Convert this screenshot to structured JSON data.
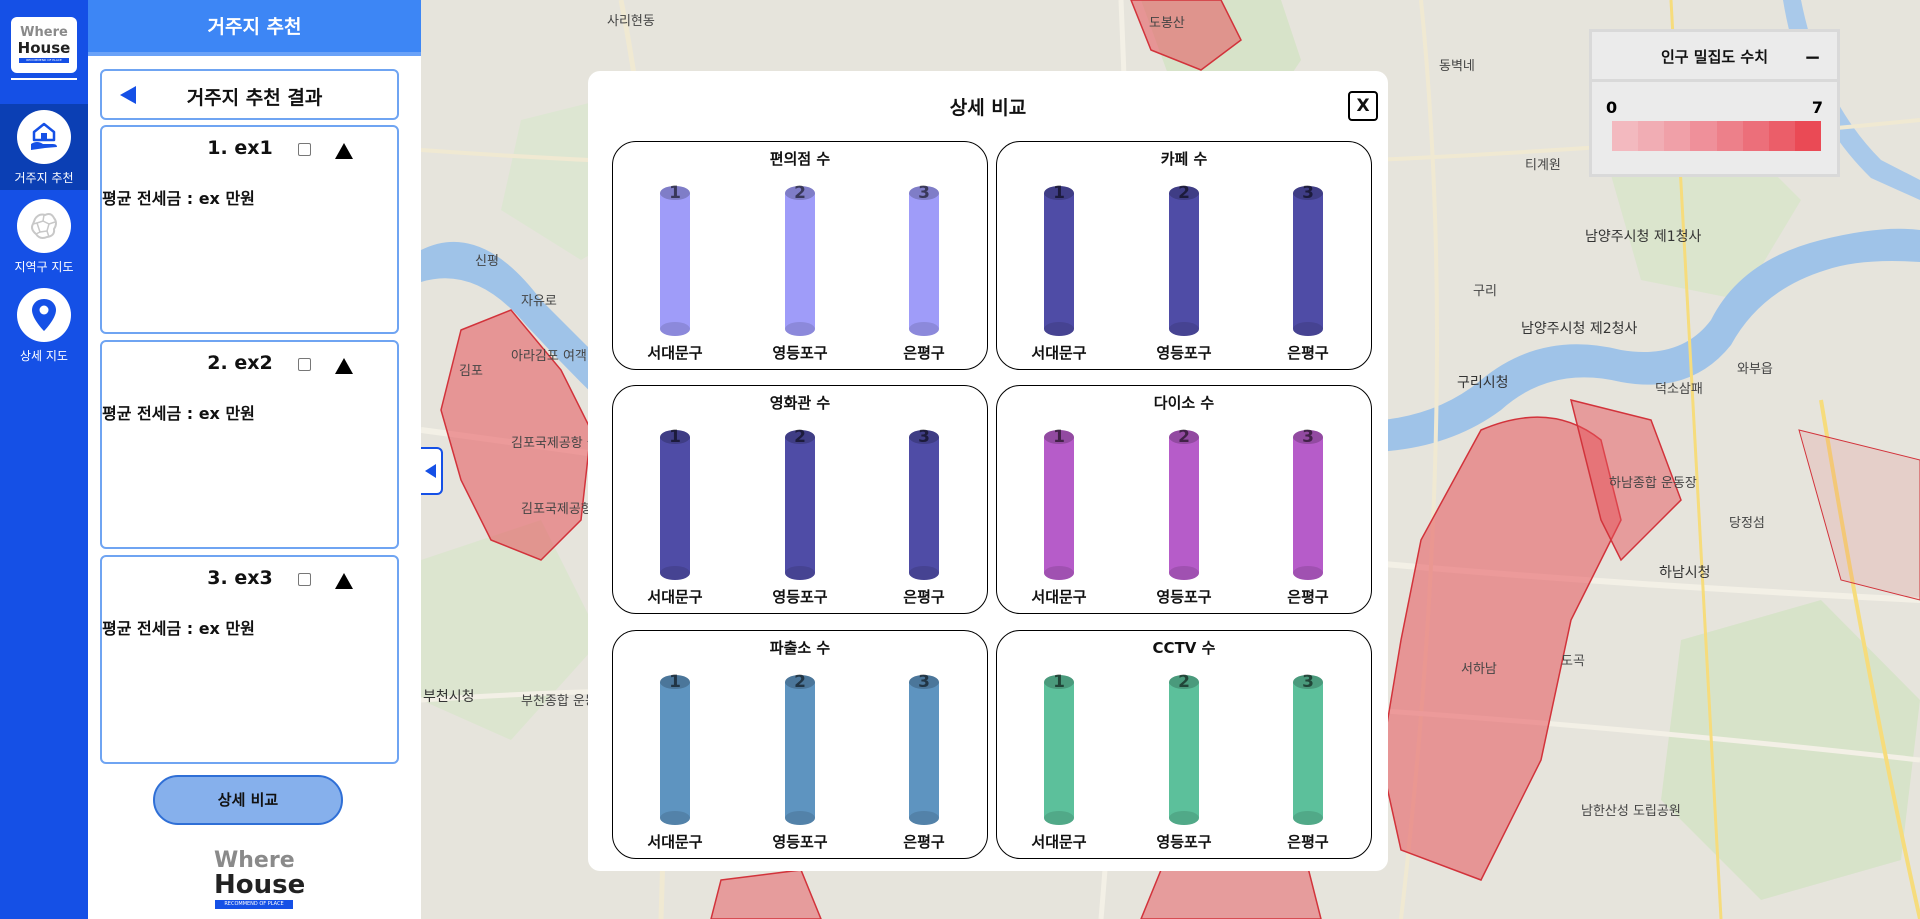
{
  "app": {
    "logo": {
      "line1": "Where",
      "line2": "House",
      "tagline": "RECOMMEND OF PLACE"
    }
  },
  "nav": {
    "items": [
      {
        "label": "거주지 추천",
        "icon": "home-hand-icon",
        "active": true
      },
      {
        "label": "지역구 지도",
        "icon": "seoul-map-icon",
        "active": false
      },
      {
        "label": "상세 지도",
        "icon": "location-pin-icon",
        "active": false
      }
    ]
  },
  "panel": {
    "header": "거주지 추천",
    "result_title": "거주지 추천 결과",
    "cards": [
      {
        "name": "1. ex1",
        "price": "평균 전세금 : ex 만원"
      },
      {
        "name": "2. ex2",
        "price": "평균 전세금 : ex 만원"
      },
      {
        "name": "3. ex3",
        "price": "평균 전세금 : ex 만원"
      }
    ],
    "compare_button": "상세 비교",
    "footer_logo": {
      "line1": "Where",
      "line2": "House",
      "tagline": "RECOMMEND OF PLACE"
    }
  },
  "legend": {
    "title": "인구 밀집도 수치",
    "collapse_symbol": "−",
    "min": "0",
    "max": "7",
    "colors": [
      "#f3b9bf",
      "#f1adb4",
      "#f0a0a8",
      "#ef909a",
      "#ed808a",
      "#ec6f7a",
      "#eb5e69",
      "#ea4a55"
    ]
  },
  "map": {
    "labels": [
      {
        "text": "사리현동"
      },
      {
        "text": "도봉산"
      },
      {
        "text": "동벽네"
      },
      {
        "text": "신평"
      },
      {
        "text": "자유로"
      },
      {
        "text": "김포"
      },
      {
        "text": "아라김포 여객터미널"
      },
      {
        "text": "김포국제공항 국제선"
      },
      {
        "text": "김포국제공항 국내선"
      },
      {
        "text": "부천시청"
      },
      {
        "text": "부천종합 운동장"
      },
      {
        "text": "티계원"
      },
      {
        "text": "구리"
      },
      {
        "text": "구리시청"
      },
      {
        "text": "남양주시청 제1청사"
      },
      {
        "text": "남양주시청 제2청사"
      },
      {
        "text": "하남종합 운동장"
      },
      {
        "text": "하남시청"
      },
      {
        "text": "덕소삼패"
      },
      {
        "text": "당정섬"
      },
      {
        "text": "와부읍"
      },
      {
        "text": "남한산성 도립공원"
      },
      {
        "text": "서하남"
      },
      {
        "text": "도곡"
      }
    ]
  },
  "modal": {
    "title": "상세 비교",
    "close_label": "X",
    "districts": [
      "서대문구",
      "영등포구",
      "은평구"
    ],
    "ranks": [
      "1",
      "2",
      "3"
    ],
    "metrics": [
      {
        "title": "편의점 수",
        "color": "#9f9cf9"
      },
      {
        "title": "카페 수",
        "color": "#4f4ca6"
      },
      {
        "title": "영화관 수",
        "color": "#4f4ca6"
      },
      {
        "title": "다이소 수",
        "color": "#b65cc9"
      },
      {
        "title": "파출소 수",
        "color": "#5e94c0"
      },
      {
        "title": "CCTV 수",
        "color": "#5cc09b"
      }
    ]
  }
}
